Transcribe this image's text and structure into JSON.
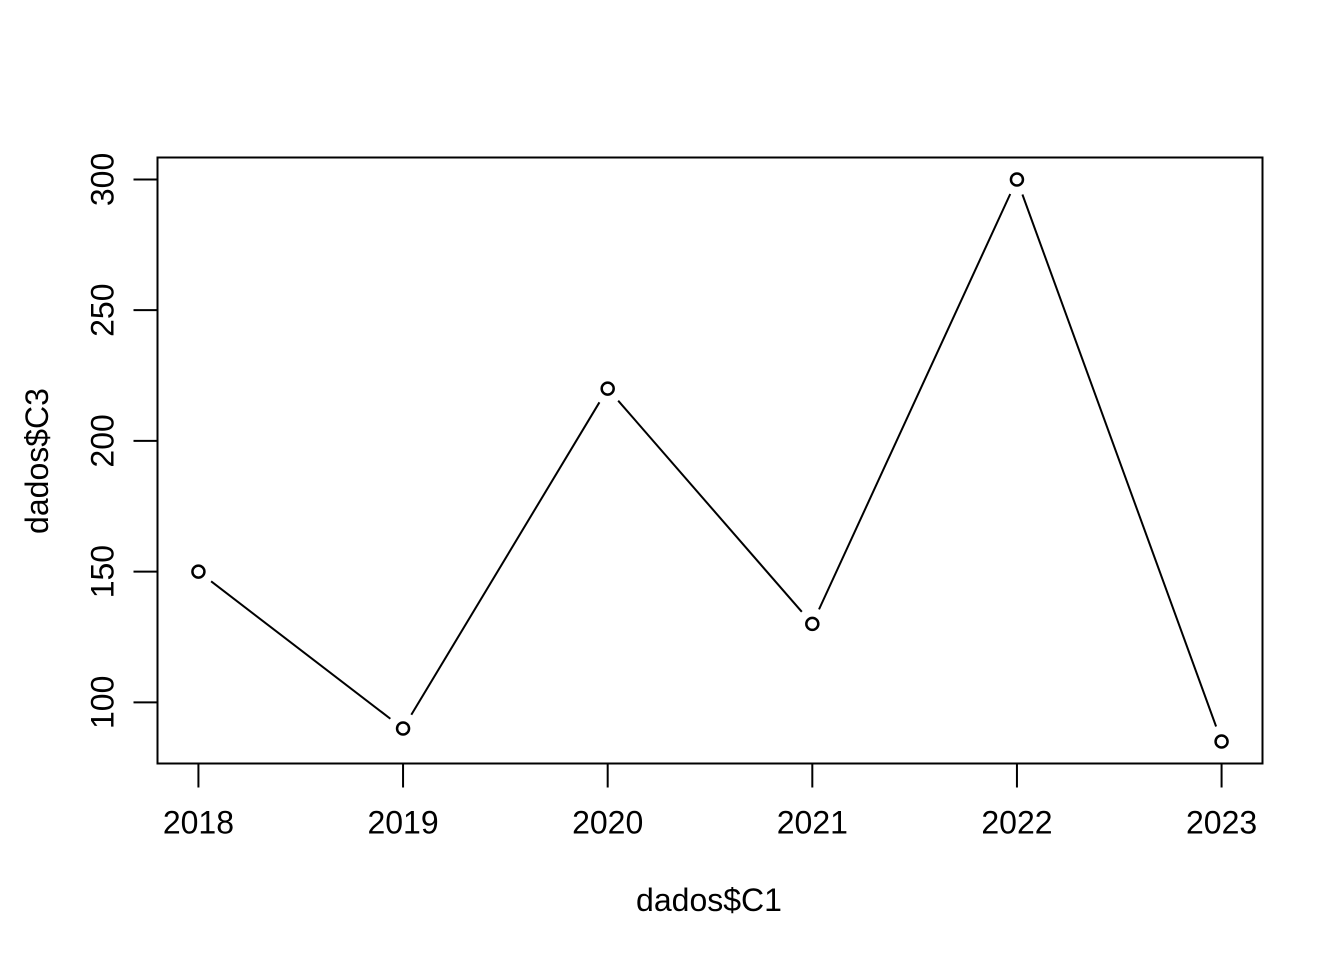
{
  "chart_data": {
    "type": "line",
    "title": "",
    "xlabel": "dados$C1",
    "ylabel": "dados$C3",
    "x": [
      2018,
      2019,
      2020,
      2021,
      2022,
      2023
    ],
    "series": [
      {
        "values": [
          150,
          90,
          220,
          130,
          300,
          85
        ]
      }
    ],
    "xticks": [
      "2018",
      "2019",
      "2020",
      "2021",
      "2022",
      "2023"
    ],
    "yticks": [
      "100",
      "150",
      "200",
      "250",
      "300"
    ],
    "xlim": [
      2017.8,
      2023.2
    ],
    "ylim": [
      76.6,
      308.4
    ],
    "marker": "open-circle",
    "line_style": "connected-with-gaps",
    "grid": false,
    "legend": "none",
    "colors": {
      "line": "#000000",
      "background": "#ffffff"
    }
  }
}
